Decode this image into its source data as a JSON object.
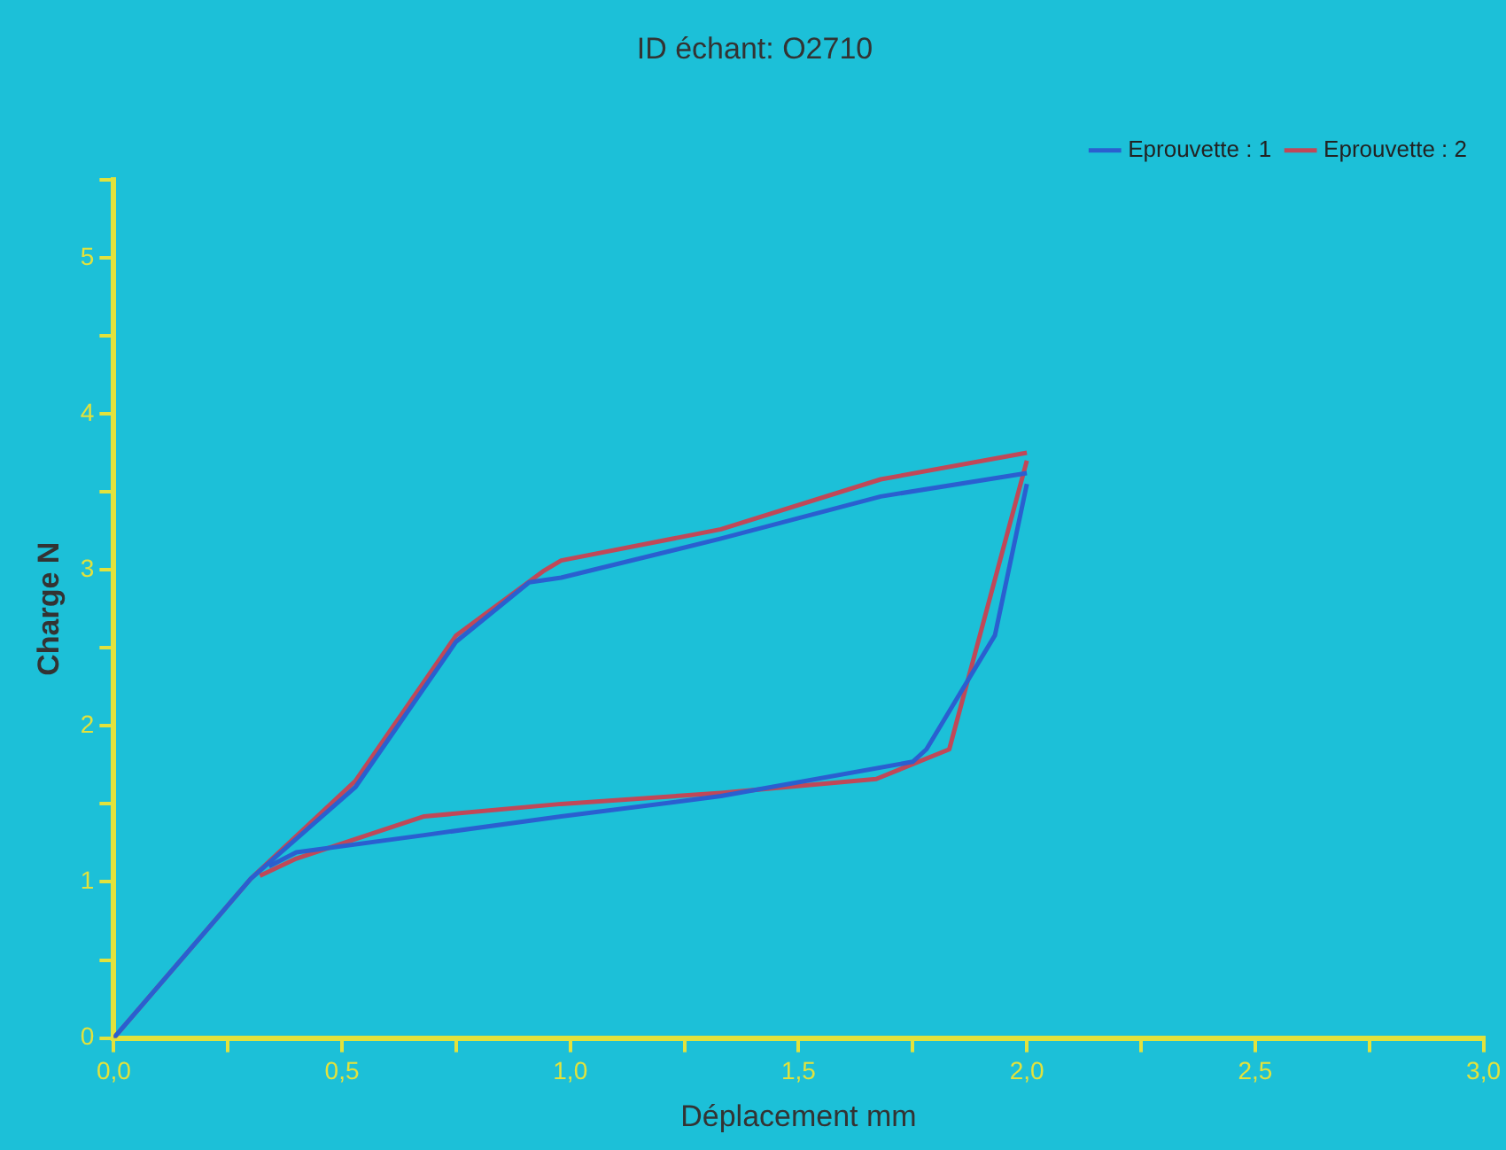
{
  "chart_data": {
    "type": "line",
    "title": "ID échant: O2710",
    "xlabel": "Déplacement mm",
    "ylabel": "Charge N",
    "xlim": [
      0,
      3
    ],
    "ylim": [
      0,
      5.5
    ],
    "xticks": [
      {
        "value": 0,
        "label": "0,0"
      },
      {
        "value": 0.25,
        "label": null
      },
      {
        "value": 0.5,
        "label": "0,5"
      },
      {
        "value": 0.75,
        "label": null
      },
      {
        "value": 1,
        "label": "1,0"
      },
      {
        "value": 1.25,
        "label": null
      },
      {
        "value": 1.5,
        "label": "1,5"
      },
      {
        "value": 1.75,
        "label": null
      },
      {
        "value": 2,
        "label": "2,0"
      },
      {
        "value": 2.25,
        "label": null
      },
      {
        "value": 2.5,
        "label": "2,5"
      },
      {
        "value": 2.75,
        "label": null
      },
      {
        "value": 3,
        "label": "3,0"
      }
    ],
    "yticks": [
      0,
      {
        "value": 0.5,
        "label": null
      },
      1,
      {
        "value": 1.5,
        "label": null
      },
      2,
      {
        "value": 2.5,
        "label": null
      },
      3,
      {
        "value": 3.5,
        "label": null
      },
      4,
      {
        "value": 4.5,
        "label": null
      },
      5,
      {
        "value": 5.5,
        "label": null
      }
    ],
    "grid": false,
    "legend": "top right",
    "marker": "none",
    "line_style": "solid",
    "series": [
      {
        "name": "Eprouvette : 1",
        "color": "#2a5fd0",
        "x": [
          0,
          0.3,
          0.53,
          0.75,
          0.91,
          0.98,
          1.33,
          1.68,
          2.0
        ],
        "values": [
          0,
          1.02,
          1.61,
          2.54,
          2.92,
          2.95,
          3.2,
          3.47,
          3.62
        ]
      },
      {
        "color": "#2a5fd0",
        "x": [
          2.0,
          1.93,
          1.78,
          1.75,
          1.33,
          0.98,
          0.68,
          0.4,
          0.34
        ],
        "values": [
          3.55,
          2.58,
          1.85,
          1.77,
          1.55,
          1.42,
          1.3,
          1.19,
          1.1
        ]
      },
      {
        "name": "Eprouvette : 2",
        "color": "#c04858",
        "x": [
          0,
          0.3,
          0.53,
          0.75,
          0.94,
          0.98,
          1.33,
          1.68,
          2.0
        ],
        "values": [
          0,
          1.02,
          1.65,
          2.58,
          2.99,
          3.06,
          3.26,
          3.58,
          3.75
        ]
      },
      {
        "color": "#c04858",
        "x": [
          2.0,
          1.83,
          1.67,
          1.33,
          0.98,
          0.68,
          0.4,
          0.32
        ],
        "values": [
          3.7,
          1.85,
          1.66,
          1.57,
          1.5,
          1.42,
          1.15,
          1.04
        ]
      }
    ]
  }
}
